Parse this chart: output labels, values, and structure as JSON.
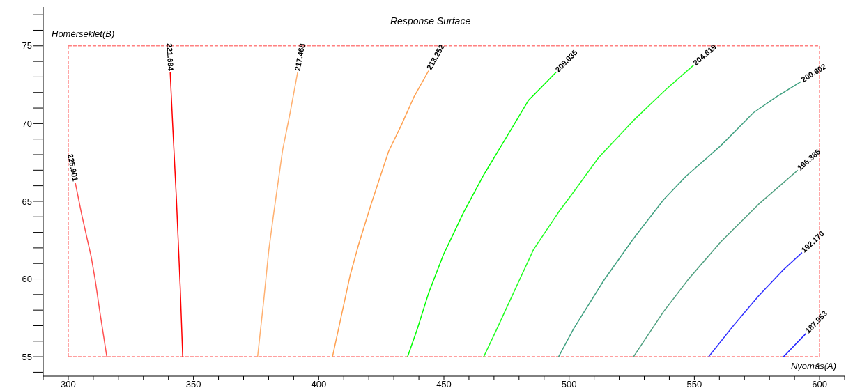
{
  "chart_data": {
    "type": "line",
    "title": "Response Surface",
    "xlabel": "Nyomás(A)",
    "ylabel": "Hõmérséklet(B)",
    "xlim": [
      290,
      610
    ],
    "ylim": [
      53.75,
      77.5
    ],
    "xticks": [
      {
        "value": 290,
        "label": null
      },
      300,
      {
        "value": 310,
        "label": null
      },
      {
        "value": 320,
        "label": null
      },
      {
        "value": 330,
        "label": null
      },
      {
        "value": 340,
        "label": null
      },
      350,
      {
        "value": 360,
        "label": null
      },
      {
        "value": 370,
        "label": null
      },
      {
        "value": 380,
        "label": null
      },
      {
        "value": 390,
        "label": null
      },
      400,
      {
        "value": 410,
        "label": null
      },
      {
        "value": 420,
        "label": null
      },
      {
        "value": 430,
        "label": null
      },
      {
        "value": 440,
        "label": null
      },
      450,
      {
        "value": 460,
        "label": null
      },
      {
        "value": 470,
        "label": null
      },
      {
        "value": 480,
        "label": null
      },
      {
        "value": 490,
        "label": null
      },
      500,
      {
        "value": 510,
        "label": null
      },
      {
        "value": 520,
        "label": null
      },
      {
        "value": 530,
        "label": null
      },
      {
        "value": 540,
        "label": null
      },
      550,
      {
        "value": 560,
        "label": null
      },
      {
        "value": 570,
        "label": null
      },
      {
        "value": 580,
        "label": null
      },
      {
        "value": 590,
        "label": null
      },
      600,
      {
        "value": 610,
        "label": null
      }
    ],
    "yticks": [
      {
        "value": 54,
        "label": null
      },
      55,
      {
        "value": 56,
        "label": null
      },
      {
        "value": 57,
        "label": null
      },
      {
        "value": 58,
        "label": null
      },
      {
        "value": 59,
        "label": null
      },
      60,
      {
        "value": 61,
        "label": null
      },
      {
        "value": 62,
        "label": null
      },
      {
        "value": 63,
        "label": null
      },
      {
        "value": 64,
        "label": null
      },
      65,
      {
        "value": 66,
        "label": null
      },
      {
        "value": 67,
        "label": null
      },
      {
        "value": 68,
        "label": null
      },
      {
        "value": 69,
        "label": null
      },
      70,
      {
        "value": 71,
        "label": null
      },
      {
        "value": 72,
        "label": null
      },
      {
        "value": 73,
        "label": null
      },
      {
        "value": 74,
        "label": null
      },
      75,
      {
        "value": 76,
        "label": null
      },
      {
        "value": 77,
        "label": null
      }
    ],
    "ref_lines": [
      {
        "axis": "x",
        "value": 300,
        "color": "#ff8080",
        "line_style": "dashed"
      },
      {
        "axis": "x",
        "value": 600,
        "color": "#ff8080",
        "line_style": "dashed"
      },
      {
        "axis": "y",
        "value": 55,
        "color": "#ff8080",
        "line_style": "dashed"
      },
      {
        "axis": "y",
        "value": 75,
        "color": "#ff8080",
        "line_style": "dashed"
      }
    ],
    "grid": false,
    "legend": false,
    "marker": "none",
    "series": [
      {
        "name": "225.901",
        "color": "#ff5050",
        "x": [
          302.8,
          305.3,
          309.2,
          310.8,
          312.7,
          315.4
        ],
        "values": [
          66.2,
          64.2,
          61.4,
          59.9,
          57.8,
          55
        ]
      },
      {
        "name": "221.684",
        "color": "#ff0000",
        "x": [
          340.7,
          341.7,
          343.2,
          344.7,
          345.7
        ],
        "values": [
          73.3,
          69.9,
          65.1,
          59.5,
          55
        ]
      },
      {
        "name": "217.468",
        "color": "#ffb070",
        "x": [
          391.6,
          388.6,
          385.6,
          382.1,
          380.1,
          378.1,
          375.6
        ],
        "values": [
          73.3,
          70.7,
          68.3,
          64.3,
          61.9,
          58.7,
          55
        ]
      },
      {
        "name": "213.252",
        "color": "#ffa050",
        "x": [
          443.9,
          438,
          433,
          427.9,
          420.9,
          415.9,
          412.5,
          409,
          405.5
        ],
        "values": [
          73.4,
          71.7,
          69.9,
          68.2,
          64.8,
          62.2,
          60.2,
          57.6,
          55
        ]
      },
      {
        "name": "209.035",
        "color": "#00ff00",
        "x": [
          494.8,
          483.8,
          474.9,
          465.9,
          457.9,
          449.9,
          443.9,
          439.4,
          435.5
        ],
        "values": [
          73.3,
          71.5,
          69.1,
          66.7,
          64.3,
          61.6,
          59.1,
          56.8,
          55
        ]
      },
      {
        "name": "204.819",
        "color": "#20ff20",
        "x": [
          549.7,
          538.7,
          525.7,
          511.7,
          501.8,
          495.8,
          485.8,
          474.9,
          470.9,
          465.9
        ],
        "values": [
          73.75,
          72.2,
          70.2,
          67.8,
          65.6,
          64.3,
          61.9,
          58.1,
          56.7,
          55
        ]
      },
      {
        "name": "200.602",
        "color": "#40a080",
        "x": [
          592.6,
          582.6,
          573.6,
          560.7,
          546.6,
          537.7,
          525.7,
          513.8,
          501.8,
          495.8
        ],
        "values": [
          72.7,
          71.7,
          70.7,
          68.6,
          66.6,
          65.1,
          62.6,
          59.9,
          56.8,
          55
        ]
      },
      {
        "name": "196.386",
        "color": "#50a080",
        "x": [
          591.3,
          575.6,
          560.6,
          547.7,
          537.7,
          525.7
        ],
        "values": [
          67,
          64.8,
          62.4,
          60,
          57.9,
          55
        ]
      },
      {
        "name": "192.170",
        "color": "#3030ff",
        "x": [
          593,
          585.6,
          575.6,
          565.6,
          555.7
        ],
        "values": [
          61.7,
          60.6,
          58.9,
          57,
          55
        ]
      },
      {
        "name": "187.953",
        "color": "#2020ff",
        "x": [
          594.6,
          585.6
        ],
        "values": [
          56.5,
          55
        ]
      }
    ]
  }
}
